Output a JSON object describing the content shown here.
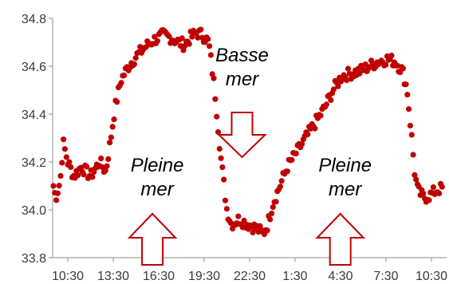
{
  "chart_data": {
    "type": "scatter",
    "title": "",
    "xlabel": "",
    "ylabel": "",
    "ylim": [
      33.8,
      34.8
    ],
    "y_ticks": [
      {
        "value": 33.8,
        "label": "33.8"
      },
      {
        "value": 34.0,
        "label": "34.0"
      },
      {
        "value": 34.2,
        "label": "34.2"
      },
      {
        "value": 34.4,
        "label": "34.4"
      },
      {
        "value": 34.6,
        "label": "34.6"
      },
      {
        "value": 34.8,
        "label": "34.8"
      }
    ],
    "x_range": [
      9.5,
      35.5
    ],
    "x_ticks": [
      {
        "value": 10.5,
        "label": "10:30"
      },
      {
        "value": 13.5,
        "label": "13:30"
      },
      {
        "value": 16.5,
        "label": "16:30"
      },
      {
        "value": 19.5,
        "label": "19:30"
      },
      {
        "value": 22.5,
        "label": "22:30"
      },
      {
        "value": 25.5,
        "label": "1:30"
      },
      {
        "value": 28.5,
        "label": "4:30"
      },
      {
        "value": 31.5,
        "label": "7:30"
      },
      {
        "value": 34.5,
        "label": "10:30"
      }
    ],
    "grid": false,
    "legend": "none",
    "marker_color": "#C00000",
    "arrow_color": "#C00000",
    "annotations": [
      {
        "text": "Basse mer",
        "lines": [
          "Basse",
          "mer"
        ],
        "x": 22.0,
        "y": 34.62,
        "arrow": "down"
      },
      {
        "text": "Pleine mer",
        "lines": [
          "Pleine",
          "mer"
        ],
        "x": 16.4,
        "y": 34.16,
        "arrow": "up"
      },
      {
        "text": "Pleine mer",
        "lines": [
          "Pleine",
          "mer"
        ],
        "x": 28.8,
        "y": 34.16,
        "arrow": "up"
      }
    ],
    "curve_anchors": [
      [
        9.55,
        34.1
      ],
      [
        9.7,
        34.05
      ],
      [
        10.0,
        34.12
      ],
      [
        10.2,
        34.28
      ],
      [
        10.5,
        34.2
      ],
      [
        10.9,
        34.14
      ],
      [
        11.4,
        34.18
      ],
      [
        12.0,
        34.14
      ],
      [
        12.6,
        34.2
      ],
      [
        13.0,
        34.16
      ],
      [
        13.3,
        34.28
      ],
      [
        13.6,
        34.42
      ],
      [
        14.0,
        34.54
      ],
      [
        14.5,
        34.6
      ],
      [
        15.0,
        34.64
      ],
      [
        15.6,
        34.68
      ],
      [
        16.2,
        34.71
      ],
      [
        16.8,
        34.73
      ],
      [
        17.3,
        34.72
      ],
      [
        17.8,
        34.7
      ],
      [
        18.2,
        34.69
      ],
      [
        18.6,
        34.72
      ],
      [
        19.0,
        34.74
      ],
      [
        19.4,
        34.73
      ],
      [
        19.8,
        34.7
      ],
      [
        20.2,
        34.5
      ],
      [
        20.6,
        34.22
      ],
      [
        21.0,
        34.0
      ],
      [
        21.3,
        33.94
      ],
      [
        21.8,
        33.96
      ],
      [
        22.4,
        33.94
      ],
      [
        23.0,
        33.92
      ],
      [
        23.4,
        33.9
      ],
      [
        23.7,
        33.94
      ],
      [
        24.0,
        34.02
      ],
      [
        24.5,
        34.1
      ],
      [
        25.0,
        34.18
      ],
      [
        25.6,
        34.24
      ],
      [
        26.2,
        34.3
      ],
      [
        26.8,
        34.36
      ],
      [
        27.4,
        34.42
      ],
      [
        28.0,
        34.5
      ],
      [
        28.6,
        34.56
      ],
      [
        29.2,
        34.57
      ],
      [
        29.8,
        34.58
      ],
      [
        30.4,
        34.6
      ],
      [
        31.0,
        34.62
      ],
      [
        31.6,
        34.63
      ],
      [
        32.1,
        34.62
      ],
      [
        32.6,
        34.58
      ],
      [
        32.9,
        34.5
      ],
      [
        33.2,
        34.3
      ],
      [
        33.4,
        34.15
      ],
      [
        33.6,
        34.08
      ],
      [
        34.0,
        34.05
      ],
      [
        34.4,
        34.06
      ],
      [
        34.8,
        34.08
      ],
      [
        35.2,
        34.09
      ]
    ],
    "point_count": 270
  }
}
